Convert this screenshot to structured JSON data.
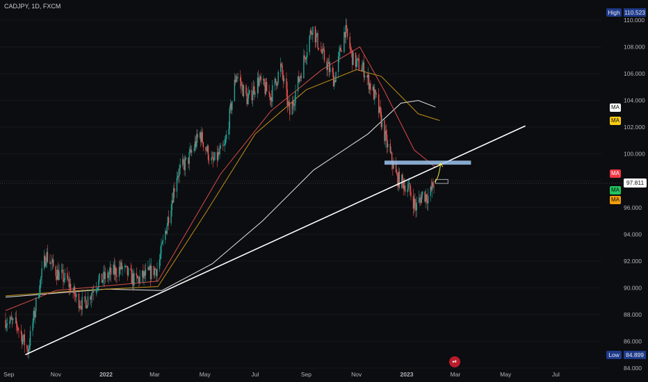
{
  "symbol_label": "CADJPY, 1D, FXCM",
  "price_axis": {
    "high_label": "High",
    "high_value": "110.523",
    "low_label": "Low",
    "low_value": "84.899",
    "current_price": "97.811",
    "ticks": [
      "110.000",
      "108.000",
      "106.000",
      "104.000",
      "102.000",
      "100.000",
      "98.000",
      "96.000",
      "94.000",
      "92.000",
      "90.000",
      "88.000",
      "86.000",
      "84.000"
    ]
  },
  "time_axis": {
    "labels": [
      "Sep",
      "Nov",
      "2022",
      "Mar",
      "May",
      "Jul",
      "Sep",
      "Nov",
      "2023",
      "Mar",
      "May",
      "Jul"
    ]
  },
  "ma_tags": [
    {
      "label": "MA",
      "bg": "#ffffff",
      "fg": "#111111"
    },
    {
      "label": "MA",
      "bg": "#facc15",
      "fg": "#111111"
    },
    {
      "label": "MA",
      "bg": "#f23645",
      "fg": "#ffffff"
    },
    {
      "label": "MA",
      "bg": "#22c55e",
      "fg": "#111111"
    },
    {
      "label": "MA",
      "bg": "#f59e0b",
      "fg": "#111111"
    }
  ],
  "event_badge": "⏯",
  "colors": {
    "up": "#26a69a",
    "down": "#ef5350",
    "trendline": "#ffffff",
    "zone": "#9ec5f0",
    "arrow": "#ffeb3b"
  },
  "chart_data": {
    "type": "candlestick",
    "title": "CADJPY, 1D, FXCM",
    "ylim": [
      84,
      111
    ],
    "x_range": [
      "2021-09-01",
      "2023-07-31"
    ],
    "high": 110.523,
    "low": 84.899,
    "last": 97.811,
    "price_path": [
      [
        "2021-09-01",
        87.6
      ],
      [
        "2021-09-15",
        87.2
      ],
      [
        "2021-09-28",
        85.3
      ],
      [
        "2021-10-10",
        89.5
      ],
      [
        "2021-10-20",
        92.5
      ],
      [
        "2021-11-01",
        91.2
      ],
      [
        "2021-11-15",
        90.5
      ],
      [
        "2021-11-25",
        89.3
      ],
      [
        "2021-12-05",
        88.7
      ],
      [
        "2021-12-20",
        90.3
      ],
      [
        "2022-01-05",
        91.0
      ],
      [
        "2022-01-20",
        91.5
      ],
      [
        "2022-02-05",
        90.5
      ],
      [
        "2022-02-20",
        91.0
      ],
      [
        "2022-03-05",
        91.5
      ],
      [
        "2022-03-15",
        94.5
      ],
      [
        "2022-03-28",
        98.5
      ],
      [
        "2022-04-10",
        99.5
      ],
      [
        "2022-04-25",
        101.5
      ],
      [
        "2022-05-10",
        99.3
      ],
      [
        "2022-05-25",
        100.5
      ],
      [
        "2022-06-08",
        106.0
      ],
      [
        "2022-06-22",
        104.0
      ],
      [
        "2022-07-05",
        105.5
      ],
      [
        "2022-07-20",
        104.3
      ],
      [
        "2022-08-01",
        106.5
      ],
      [
        "2022-08-12",
        103.0
      ],
      [
        "2022-08-25",
        106.0
      ],
      [
        "2022-09-08",
        109.5
      ],
      [
        "2022-09-20",
        107.5
      ],
      [
        "2022-10-05",
        105.5
      ],
      [
        "2022-10-18",
        109.3
      ],
      [
        "2022-10-28",
        107.0
      ],
      [
        "2022-11-10",
        106.3
      ],
      [
        "2022-11-25",
        104.0
      ],
      [
        "2022-12-08",
        100.7
      ],
      [
        "2022-12-20",
        98.2
      ],
      [
        "2023-01-03",
        97.5
      ],
      [
        "2023-01-12",
        96.0
      ],
      [
        "2023-01-20",
        97.0
      ],
      [
        "2023-01-28",
        96.8
      ],
      [
        "2023-02-03",
        97.8
      ]
    ],
    "moving_averages": [
      {
        "color": "#ffffff",
        "path": [
          [
            "2021-09-01",
            89.3
          ],
          [
            "2022-01-01",
            89.9
          ],
          [
            "2022-03-10",
            89.8
          ],
          [
            "2022-05-10",
            91.8
          ],
          [
            "2022-07-10",
            95.0
          ],
          [
            "2022-09-10",
            98.8
          ],
          [
            "2022-11-15",
            101.5
          ],
          [
            "2022-12-25",
            103.8
          ],
          [
            "2023-01-15",
            104.0
          ],
          [
            "2023-02-05",
            103.5
          ]
        ]
      },
      {
        "color": "#d4a017",
        "path": [
          [
            "2021-09-01",
            89.4
          ],
          [
            "2021-12-01",
            89.8
          ],
          [
            "2022-03-05",
            90.1
          ],
          [
            "2022-05-01",
            95.5
          ],
          [
            "2022-07-01",
            101.5
          ],
          [
            "2022-09-01",
            104.8
          ],
          [
            "2022-11-01",
            106.3
          ],
          [
            "2022-12-01",
            105.8
          ],
          [
            "2023-01-15",
            103.0
          ],
          [
            "2023-02-10",
            102.5
          ]
        ]
      },
      {
        "color": "#ef5350",
        "path": [
          [
            "2021-09-01",
            88.3
          ],
          [
            "2021-11-01",
            89.8
          ],
          [
            "2022-03-05",
            90.5
          ],
          [
            "2022-05-20",
            98.5
          ],
          [
            "2022-07-20",
            103.2
          ],
          [
            "2022-09-20",
            106.3
          ],
          [
            "2022-11-05",
            108.0
          ],
          [
            "2022-12-05",
            104.7
          ],
          [
            "2023-01-10",
            100.3
          ],
          [
            "2023-02-05",
            99.0
          ]
        ]
      }
    ],
    "trendline": [
      [
        "2021-09-25",
        85.0
      ],
      [
        "2022-03-10",
        89.8
      ],
      [
        "2023-05-25",
        102.1
      ]
    ],
    "zone": {
      "from": "2022-12-05",
      "to": "2023-03-20",
      "y_low": 99.2,
      "y_high": 99.4
    },
    "marker_box": {
      "from": "2023-02-05",
      "to": "2023-02-20",
      "y_low": 97.8,
      "y_high": 98.1
    }
  }
}
